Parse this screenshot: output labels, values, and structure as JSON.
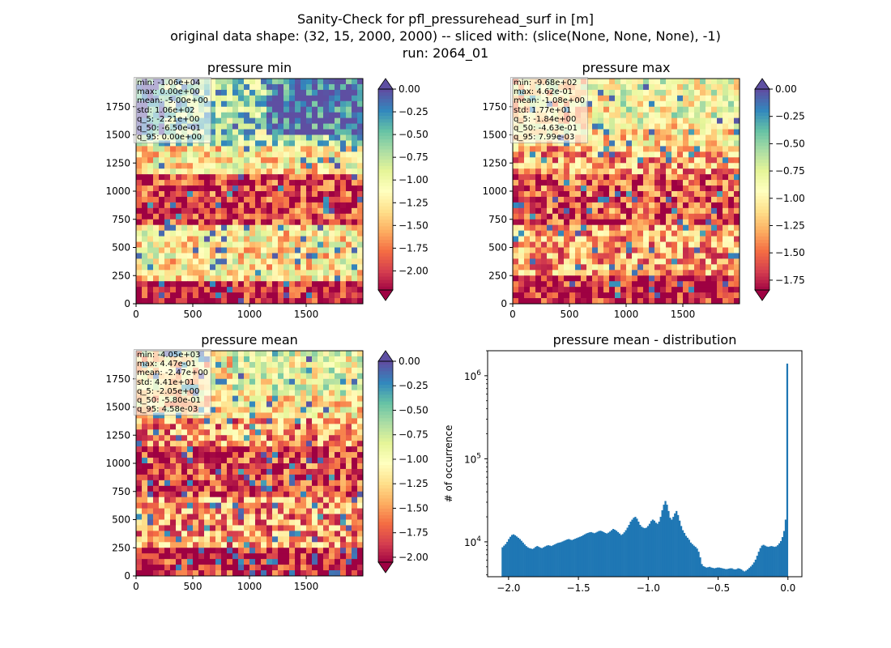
{
  "figure": {
    "title_lines": [
      "Sanity-Check for pfl_pressurehead_surf in [m]",
      "original data shape: (32, 15, 2000, 2000) -- sliced with: (slice(None, None, None), -1)",
      "run: 2064_01"
    ]
  },
  "palette": {
    "spectral": [
      "#9e0142",
      "#d53e4f",
      "#f46d43",
      "#fdae61",
      "#fee08b",
      "#ffffbf",
      "#e6f598",
      "#abdda4",
      "#66c2a5",
      "#3288bd",
      "#5e4fa2"
    ],
    "hist_bar": "#1f77b4"
  },
  "chart_data": [
    {
      "type": "heatmap",
      "title": "pressure min",
      "xlim": [
        0,
        2000
      ],
      "ylim": [
        0,
        2000
      ],
      "xticks": [
        "0",
        "500",
        "1000",
        "1500"
      ],
      "yticks": [
        "0",
        "250",
        "500",
        "750",
        "1000",
        "1250",
        "1500",
        "1750"
      ],
      "colorbar": {
        "vmin": -2.21,
        "vmax": 0.0,
        "extend": "both",
        "ticks": [
          "0.00",
          "-0.25",
          "-0.50",
          "-0.75",
          "-1.00",
          "-1.25",
          "-1.50",
          "-1.75",
          "-2.00"
        ]
      },
      "stats": [
        "min: -1.06e+04",
        "max: 0.00e+00",
        "mean: -5.00e+00",
        "std: 1.06e+02",
        "q_5: -2.21e+00",
        "q_50: -6.50e-01",
        "q_95: 0.00e+00"
      ]
    },
    {
      "type": "heatmap",
      "title": "pressure max",
      "xlim": [
        0,
        2000
      ],
      "ylim": [
        0,
        2000
      ],
      "xticks": [
        "0",
        "500",
        "1000",
        "1500"
      ],
      "yticks": [
        "0",
        "250",
        "500",
        "750",
        "1000",
        "1250",
        "1500",
        "1750"
      ],
      "colorbar": {
        "vmin": -1.84,
        "vmax": 0.0,
        "extend": "both",
        "ticks": [
          "0.00",
          "-0.25",
          "-0.50",
          "-0.75",
          "-1.00",
          "-1.25",
          "-1.50",
          "-1.75"
        ]
      },
      "stats": [
        "min: -9.68e+02",
        "max: 4.62e-01",
        "mean: -1.08e+00",
        "std: 1.77e+01",
        "q_5: -1.84e+00",
        "q_50: -4.63e-01",
        "q_95: 7.99e-03"
      ]
    },
    {
      "type": "heatmap",
      "title": "pressure mean",
      "xlim": [
        0,
        2000
      ],
      "ylim": [
        0,
        2000
      ],
      "xticks": [
        "0",
        "500",
        "1000",
        "1500"
      ],
      "yticks": [
        "0",
        "250",
        "500",
        "750",
        "1000",
        "1250",
        "1500",
        "1750"
      ],
      "colorbar": {
        "vmin": -2.05,
        "vmax": 0.0,
        "extend": "both",
        "ticks": [
          "0.00",
          "-0.25",
          "-0.50",
          "-0.75",
          "-1.00",
          "-1.25",
          "-1.50",
          "-1.75",
          "-2.00"
        ]
      },
      "stats": [
        "min: -4.05e+03",
        "max: 4.47e-01",
        "mean: -2.47e+00",
        "std: 4.41e+01",
        "q_5: -2.05e+00",
        "q_50: -5.80e-01",
        "q_95: 4.58e-03"
      ]
    },
    {
      "type": "bar",
      "title": "pressure mean - distribution",
      "ylabel": "# of occurrence",
      "yscale": "log",
      "xlim": [
        -2.15,
        0.1
      ],
      "ylim": [
        3800,
        2000000
      ],
      "xticks": [
        -2.0,
        -1.5,
        -1.0,
        -0.5,
        0.0
      ],
      "xtick_labels": [
        "−2.0",
        "−1.5",
        "−1.0",
        "−0.5",
        "0.0"
      ],
      "yticks": [
        10000,
        100000,
        1000000
      ],
      "ytick_labels": [
        "10^4",
        "10^5",
        "10^6"
      ],
      "bin_range": [
        -2.05,
        0.0
      ],
      "values": [
        8600,
        9000,
        9400,
        10000,
        10800,
        11500,
        12100,
        12300,
        12000,
        11600,
        11200,
        10800,
        10300,
        9800,
        9300,
        8900,
        8600,
        8400,
        8300,
        8200,
        8400,
        8700,
        8900,
        8700,
        8500,
        8400,
        8600,
        8800,
        9000,
        9100,
        9000,
        8900,
        9100,
        9300,
        9500,
        9700,
        9800,
        9900,
        10100,
        10300,
        10500,
        10700,
        10800,
        10600,
        10500,
        10700,
        10900,
        11100,
        11300,
        11500,
        11700,
        12000,
        12300,
        12600,
        12800,
        13000,
        13100,
        12900,
        12700,
        12900,
        13200,
        13500,
        13600,
        13400,
        13100,
        12800,
        12600,
        12900,
        13300,
        13800,
        14300,
        14000,
        13600,
        13100,
        12600,
        12100,
        12400,
        13000,
        13800,
        14800,
        16000,
        17500,
        18500,
        19500,
        20000,
        19000,
        17500,
        16000,
        15200,
        14800,
        14600,
        14800,
        15500,
        16500,
        17800,
        18500,
        18000,
        17000,
        16500,
        17500,
        20000,
        24000,
        28000,
        31000,
        28000,
        23500,
        19500,
        18500,
        20000,
        22000,
        23500,
        21000,
        18000,
        15500,
        13800,
        12800,
        11800,
        11200,
        10600,
        9800,
        9400,
        9000,
        8700,
        8300,
        7600,
        6500,
        5400,
        5100,
        5000,
        4900,
        4950,
        5000,
        4900,
        4850,
        4800,
        4850,
        4900,
        4900,
        4850,
        4800,
        4750,
        4700,
        4700,
        4750,
        4800,
        4800,
        4700,
        4650,
        4700,
        4800,
        4750,
        4650,
        4500,
        4400,
        4500,
        4650,
        4850,
        5050,
        5300,
        5650,
        6100,
        6800,
        7600,
        8400,
        9000,
        9200,
        9000,
        8800,
        8700,
        8800,
        8900,
        8800,
        8700,
        8800,
        9100,
        9600,
        10200,
        11400,
        13500,
        18500,
        1400000
      ]
    }
  ]
}
